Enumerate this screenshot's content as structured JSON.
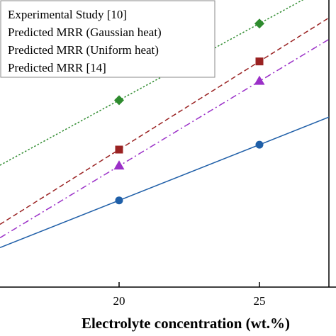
{
  "chart_data": {
    "type": "line",
    "title": "",
    "xlabel": "Electrolyte concentration (wt.%)",
    "ylabel": "",
    "x_ticks": [
      20,
      25
    ],
    "legend_placement": "top-left",
    "series": [
      {
        "name": "Experimental Study [10]",
        "color": "#1f5fa8",
        "line_style": "solid",
        "marker": "circle",
        "x": [
          20,
          25
        ],
        "y": [
          0.302,
          0.496
        ]
      },
      {
        "name": "Predicted MRR (Gaussian heat)",
        "color": "#2e8b2e",
        "line_style": "dotted",
        "marker": "diamond",
        "x": [
          20,
          25
        ],
        "y": [
          0.651,
          0.918
        ]
      },
      {
        "name": "Predicted MRR (Uniform heat)",
        "color": "#9a2222",
        "line_style": "dashed",
        "marker": "square",
        "x": [
          20,
          25
        ],
        "y": [
          0.479,
          0.786
        ]
      },
      {
        "name": "Predicted MRR [14]",
        "color": "#9b30c8",
        "line_style": "dashdot",
        "marker": "triangle",
        "x": [
          20,
          25
        ],
        "y": [
          0.422,
          0.717
        ]
      }
    ]
  }
}
